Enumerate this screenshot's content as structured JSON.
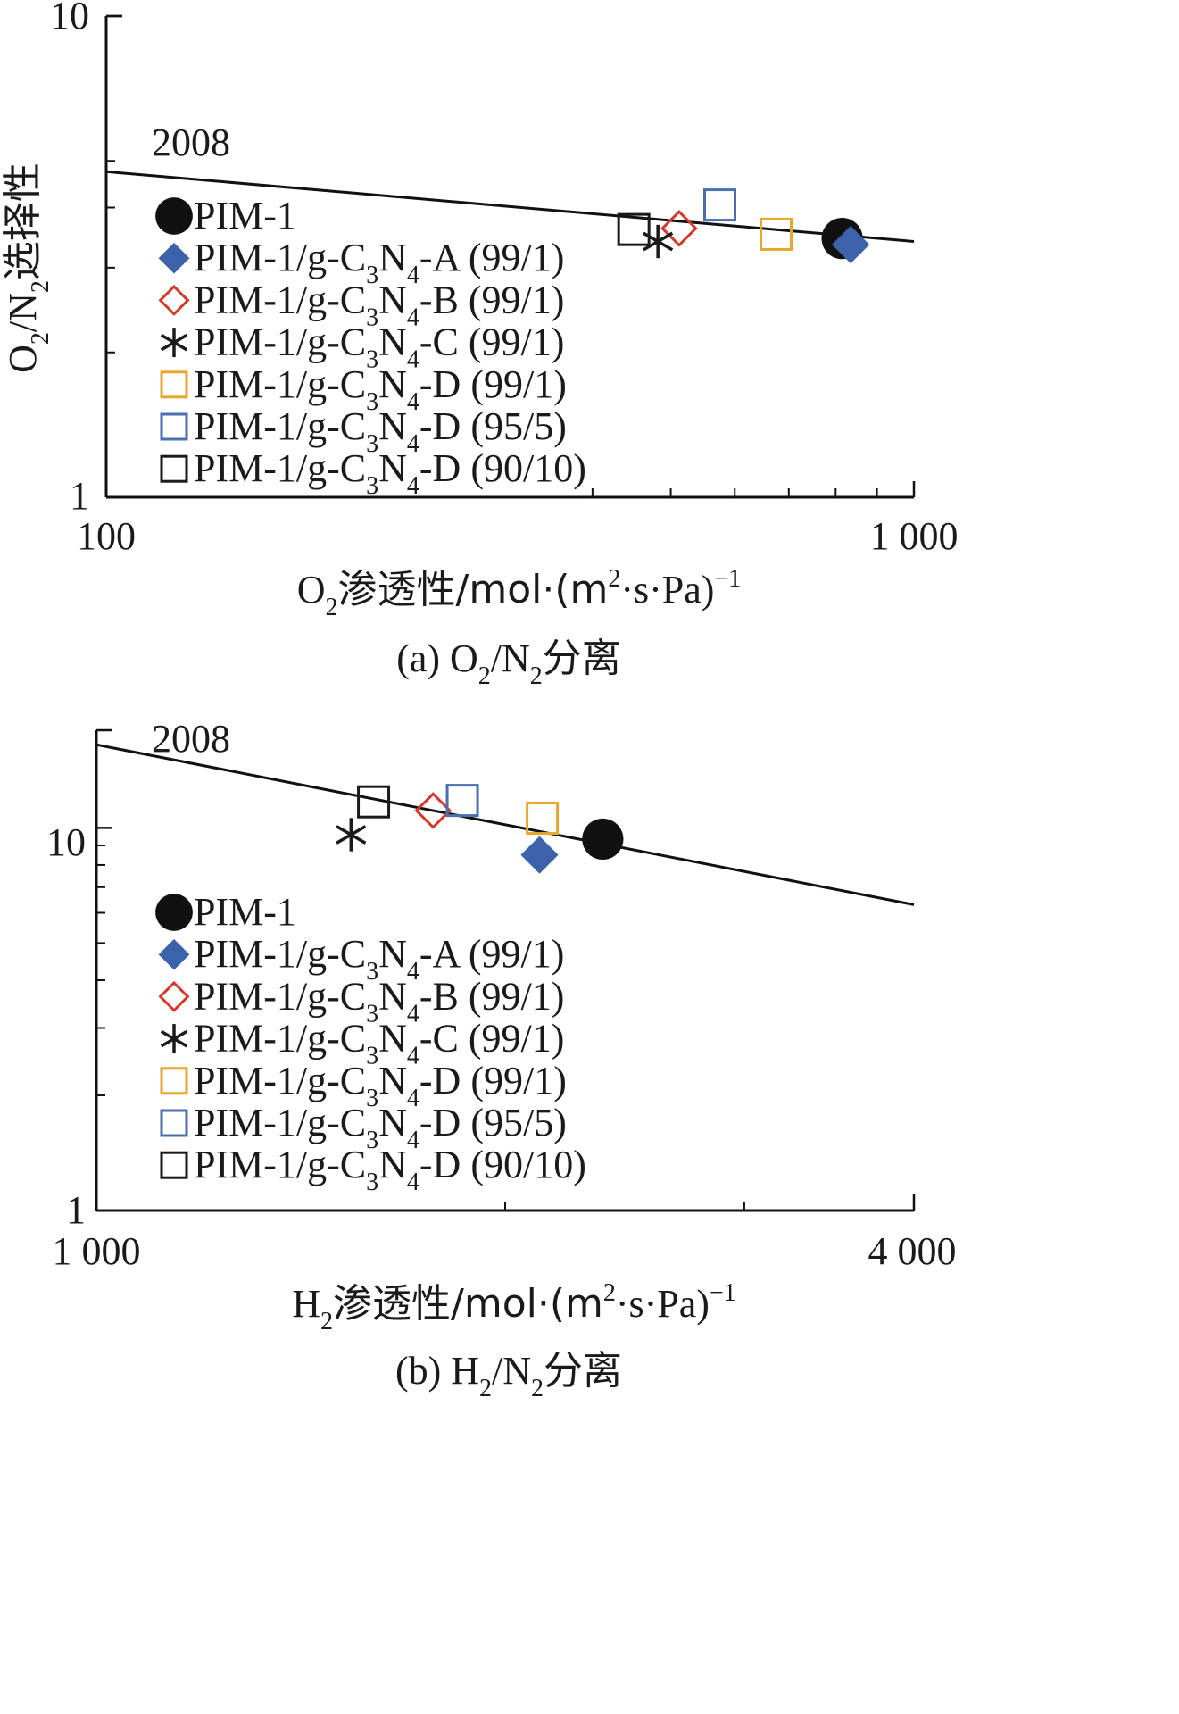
{
  "chart_data": [
    {
      "type": "scatter",
      "panel": "a",
      "caption": {
        "prefix": "(a) O",
        "sub1": "2",
        "mid": "/N",
        "sub2": "2",
        "suffix": "分离"
      },
      "xlabel": {
        "main": "O",
        "sub": "2",
        "rest": "渗透性/mol·(m",
        "sup": "2",
        "rest2": "·s·Pa)",
        "sup2": "−1"
      },
      "ylabel": {
        "main": "O",
        "sub": "2",
        "mid": "/N",
        "sub2": "2",
        "rest": "选择性"
      },
      "x_scale": "log",
      "y_scale": "log",
      "xlim": [
        100,
        1000
      ],
      "ylim": [
        1,
        10
      ],
      "x_ticklabels": [
        "100",
        "1 000"
      ],
      "y_ticklabels": [
        "1",
        "10"
      ],
      "upper_bound": {
        "label": "2008",
        "points": [
          [
            100,
            4.75
          ],
          [
            1000,
            3.4
          ]
        ]
      },
      "series": [
        {
          "key": "pim1",
          "x": 815,
          "y": 3.45
        },
        {
          "key": "a",
          "x": 835,
          "y": 3.35
        },
        {
          "key": "b",
          "x": 512,
          "y": 3.62
        },
        {
          "key": "c",
          "x": 482,
          "y": 3.4
        },
        {
          "key": "d991",
          "x": 675,
          "y": 3.52
        },
        {
          "key": "d955",
          "x": 575,
          "y": 4.05
        },
        {
          "key": "d9010",
          "x": 450,
          "y": 3.6
        }
      ]
    },
    {
      "type": "scatter",
      "panel": "b",
      "caption": {
        "prefix": "(b) H",
        "sub1": "2",
        "mid": "/N",
        "sub2": "2",
        "suffix": "分离"
      },
      "xlabel": {
        "main": "H",
        "sub": "2",
        "rest": "渗透性/mol·(m",
        "sup": "2",
        "rest2": "·s·Pa)",
        "sup2": "−1"
      },
      "ylabel": null,
      "x_scale": "log",
      "y_scale": "log",
      "xlim": [
        1000,
        4000
      ],
      "ylim": [
        1,
        18
      ],
      "x_ticklabels": [
        "1 000",
        "4 000"
      ],
      "y_ticklabels": [
        "1",
        "10"
      ],
      "upper_bound": {
        "label": "2008",
        "points": [
          [
            1000,
            16.5
          ],
          [
            4000,
            6.3
          ]
        ]
      },
      "series": [
        {
          "key": "pim1",
          "x": 2360,
          "y": 9.35
        },
        {
          "key": "a",
          "x": 2120,
          "y": 8.5
        },
        {
          "key": "b",
          "x": 1770,
          "y": 11.1
        },
        {
          "key": "c",
          "x": 1540,
          "y": 9.6
        },
        {
          "key": "d991",
          "x": 2130,
          "y": 10.6
        },
        {
          "key": "d955",
          "x": 1860,
          "y": 11.8
        },
        {
          "key": "d9010",
          "x": 1600,
          "y": 11.7
        }
      ]
    }
  ],
  "legend": [
    {
      "key": "pim1",
      "marker": "circle-filled",
      "color": "#111111",
      "label": {
        "pre": "PIM-1"
      }
    },
    {
      "key": "a",
      "marker": "diamond-filled",
      "color": "#3c63a9",
      "label": {
        "pre": "PIM-1/g-C",
        "s1": "3",
        "mid": "N",
        "s2": "4",
        "post": "-A (99/1)"
      }
    },
    {
      "key": "b",
      "marker": "diamond-open",
      "color": "#d23a2c",
      "label": {
        "pre": "PIM-1/g-C",
        "s1": "3",
        "mid": "N",
        "s2": "4",
        "post": "-B (99/1)"
      }
    },
    {
      "key": "c",
      "marker": "asterisk",
      "color": "#1a1a1a",
      "label": {
        "pre": "PIM-1/g-C",
        "s1": "3",
        "mid": "N",
        "s2": "4",
        "post": "-C (99/1)"
      }
    },
    {
      "key": "d991",
      "marker": "square-open",
      "color": "#e6a630",
      "label": {
        "pre": "PIM-1/g-C",
        "s1": "3",
        "mid": "N",
        "s2": "4",
        "post": "-D (99/1)"
      }
    },
    {
      "key": "d955",
      "marker": "square-open",
      "color": "#4a6fae",
      "label": {
        "pre": "PIM-1/g-C",
        "s1": "3",
        "mid": "N",
        "s2": "4",
        "post": "-D (95/5)"
      }
    },
    {
      "key": "d9010",
      "marker": "square-open",
      "color": "#1a1a1a",
      "label": {
        "pre": "PIM-1/g-C",
        "s1": "3",
        "mid": "N",
        "s2": "4",
        "post": "-D (90/10)"
      }
    }
  ]
}
